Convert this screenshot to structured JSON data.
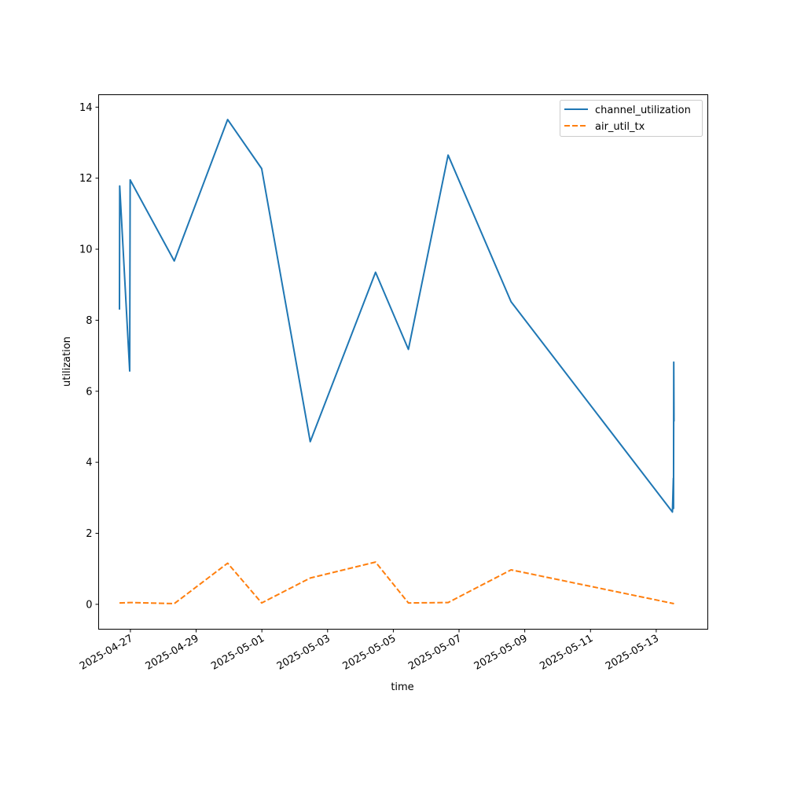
{
  "chart_data": {
    "type": "line",
    "title": "",
    "xlabel": "time",
    "ylabel": "utilization",
    "x_type": "datetime",
    "xlim": [
      "2025-04-26T00:48",
      "2025-05-14T13:40"
    ],
    "ylim": [
      -0.7,
      14.35
    ],
    "x_ticks": [
      "2025-04-27",
      "2025-04-29",
      "2025-05-01",
      "2025-05-03",
      "2025-05-05",
      "2025-05-07",
      "2025-05-09",
      "2025-05-11",
      "2025-05-13"
    ],
    "y_ticks": [
      0,
      2,
      4,
      6,
      8,
      10,
      12,
      14
    ],
    "grid": false,
    "legend": "upper right",
    "series": [
      {
        "name": "channel_utilization",
        "color": "#1f77b4",
        "style": "solid",
        "points": [
          {
            "x": "2025-04-26T16:00",
            "y": 8.3
          },
          {
            "x": "2025-04-26T16:10",
            "y": 11.78
          },
          {
            "x": "2025-04-26T23:30",
            "y": 6.57
          },
          {
            "x": "2025-04-26T23:50",
            "y": 11.95
          },
          {
            "x": "2025-04-28T08:00",
            "y": 9.67
          },
          {
            "x": "2025-04-29T23:00",
            "y": 13.65
          },
          {
            "x": "2025-04-30T23:50",
            "y": 12.27
          },
          {
            "x": "2025-05-02T11:20",
            "y": 4.58
          },
          {
            "x": "2025-05-04T11:00",
            "y": 9.35
          },
          {
            "x": "2025-05-05T11:00",
            "y": 7.18
          },
          {
            "x": "2025-05-06T16:00",
            "y": 12.65
          },
          {
            "x": "2025-05-08T14:00",
            "y": 8.52
          },
          {
            "x": "2025-05-13T11:50",
            "y": 2.6
          },
          {
            "x": "2025-05-13T12:30",
            "y": 3.55
          },
          {
            "x": "2025-05-13T12:40",
            "y": 2.7
          },
          {
            "x": "2025-05-13T12:50",
            "y": 6.82
          },
          {
            "x": "2025-05-13T13:00",
            "y": 5.15
          }
        ]
      },
      {
        "name": "air_util_tx",
        "color": "#ff7f0e",
        "style": "dashed",
        "points": [
          {
            "x": "2025-04-26T16:00",
            "y": 0.04
          },
          {
            "x": "2025-04-26T23:50",
            "y": 0.05
          },
          {
            "x": "2025-04-28T08:00",
            "y": 0.02
          },
          {
            "x": "2025-04-29T23:00",
            "y": 1.16
          },
          {
            "x": "2025-04-30T23:50",
            "y": 0.04
          },
          {
            "x": "2025-05-02T11:20",
            "y": 0.74
          },
          {
            "x": "2025-05-04T11:00",
            "y": 1.19
          },
          {
            "x": "2025-05-05T11:00",
            "y": 0.04
          },
          {
            "x": "2025-05-06T16:00",
            "y": 0.05
          },
          {
            "x": "2025-05-08T14:00",
            "y": 0.97
          },
          {
            "x": "2025-05-13T13:00",
            "y": 0.02
          }
        ]
      }
    ]
  }
}
